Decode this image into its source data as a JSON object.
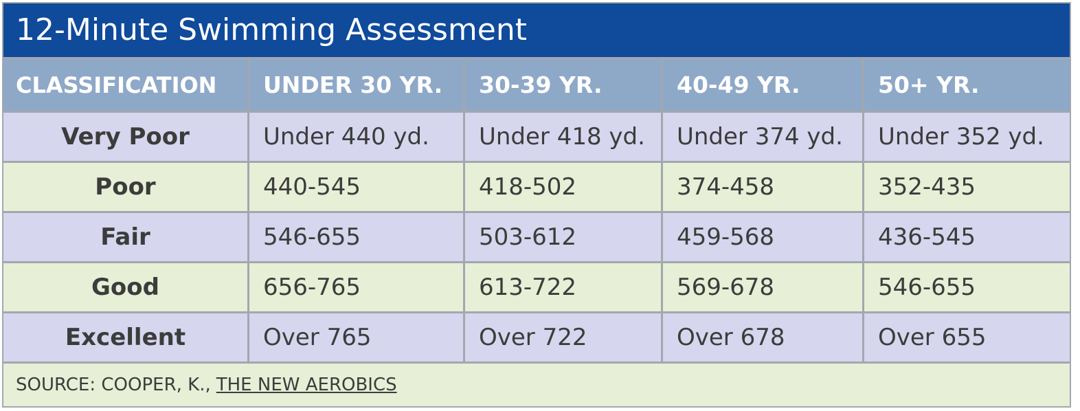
{
  "title": "12-Minute Swimming Assessment",
  "table": {
    "headers": [
      "CLASSIFICATION",
      "UNDER 30 YR.",
      "30-39 YR.",
      "40-49 YR.",
      "50+ YR."
    ],
    "rows": [
      [
        "Very Poor",
        "Under 440 yd.",
        "Under 418 yd.",
        "Under 374 yd.",
        "Under 352 yd."
      ],
      [
        "Poor",
        "440-545",
        "418-502",
        "374-458",
        "352-435"
      ],
      [
        "Fair",
        "546-655",
        "503-612",
        "459-568",
        "436-545"
      ],
      [
        "Good",
        "656-765",
        "613-722",
        "569-678",
        "546-655"
      ],
      [
        "Excellent",
        "Over 765",
        "Over 722",
        "Over 678",
        "Over 655"
      ]
    ]
  },
  "source": {
    "prefix": "SOURCE: COOPER, K.,",
    "title": "THE NEW AEROBICS"
  }
}
